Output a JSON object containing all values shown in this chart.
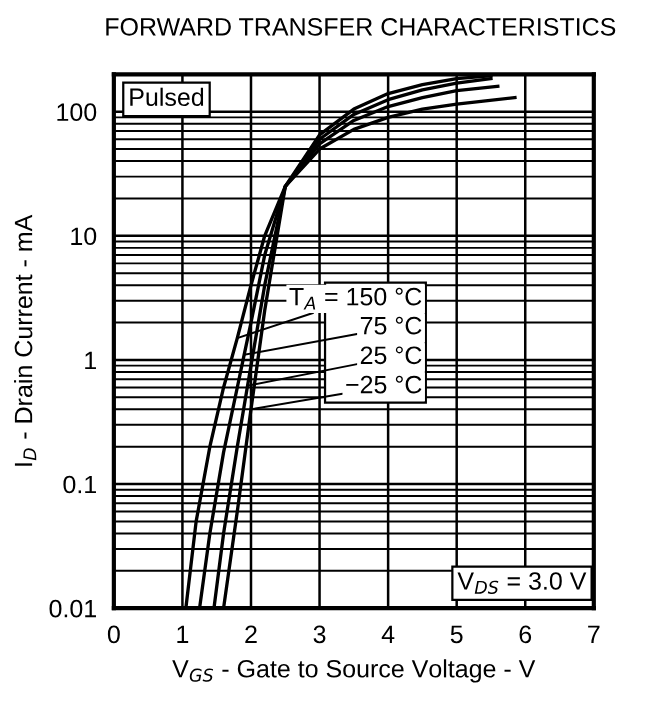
{
  "chart_data": {
    "type": "line",
    "title": "FORWARD TRANSFER CHARACTERISTICS",
    "xlabel": "V$_{GS}$ - Gate to Source Voltage - V",
    "ylabel": "I$_{D}$ - Drain Current - mA",
    "log": "y",
    "grid": true,
    "legend": false,
    "marker": "none",
    "line_style": "solid",
    "xlim": [
      0,
      7
    ],
    "xticks": [
      0,
      1,
      2,
      3,
      4,
      5,
      6,
      7
    ],
    "ylim": [
      0.01,
      200
    ],
    "yticks": [
      0.01,
      0.1,
      1,
      10,
      100
    ],
    "series": [
      {
        "color": "#000000",
        "x": [
          1.05,
          1.2,
          1.4,
          1.6,
          1.8,
          2.0,
          2.2,
          2.5,
          3,
          3.5,
          4,
          4.5,
          5,
          5.85
        ],
        "values": [
          0.01,
          0.05,
          0.2,
          0.6,
          1.5,
          4,
          10,
          25,
          50,
          72,
          90,
          105,
          115,
          130
        ]
      },
      {
        "color": "#000000",
        "x": [
          1.25,
          1.4,
          1.6,
          1.8,
          1.9,
          2.0,
          2.2,
          2.5,
          3,
          3.5,
          4,
          4.5,
          5,
          5.6
        ],
        "values": [
          0.01,
          0.04,
          0.18,
          0.6,
          1.1,
          2,
          7,
          25,
          55,
          85,
          110,
          130,
          148,
          160
        ]
      },
      {
        "color": "#000000",
        "x": [
          1.46,
          1.6,
          1.8,
          1.95,
          2.0,
          2.2,
          2.5,
          3,
          3.5,
          4,
          4.5,
          5,
          5.5
        ],
        "values": [
          0.01,
          0.04,
          0.2,
          0.62,
          0.9,
          4,
          25,
          60,
          95,
          125,
          150,
          170,
          185
        ]
      },
      {
        "color": "#000000",
        "x": [
          1.6,
          1.8,
          2.0,
          2.2,
          2.5,
          3,
          3.5,
          4,
          4.5,
          5,
          5.5
        ],
        "values": [
          0.01,
          0.06,
          0.4,
          2.5,
          25,
          65,
          105,
          140,
          165,
          185,
          195
        ]
      }
    ],
    "annotations": [
      {
        "text": "T$_{A}$ = 150 °C",
        "x": 1.8,
        "y": 1.5
      },
      {
        "text": "75 °C",
        "x": 1.9,
        "y": 1.1
      },
      {
        "text": "25 °C",
        "x": 1.95,
        "y": 0.62
      },
      {
        "text": "−25 °C",
        "x": 2.0,
        "y": 0.4
      },
      "Pulsed",
      "V$_{DS}$ = 3.0 V"
    ]
  }
}
